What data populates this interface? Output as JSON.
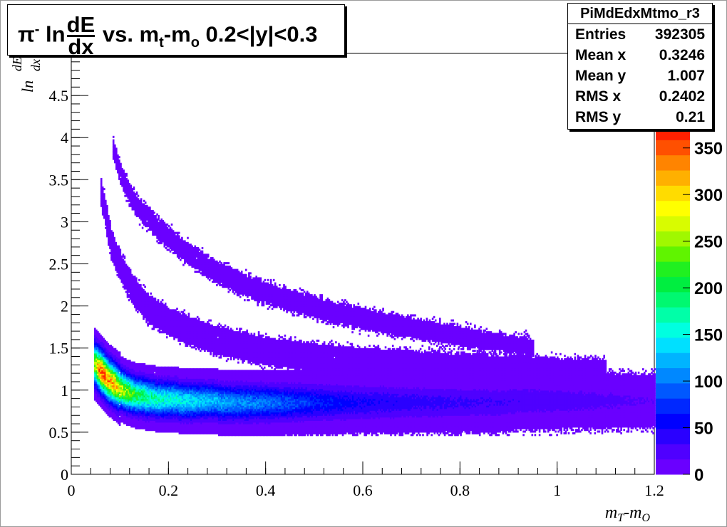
{
  "title": {
    "particle": "π",
    "particle_sup": "-",
    "ln": "ln",
    "frac_num": "dE",
    "frac_den": "dx",
    "vs": "vs. m",
    "t_sub": "t",
    "minus_m": "-m",
    "o_sub": "o",
    "cut": "0.2<|y|<0.3"
  },
  "stats": {
    "name": "PiMdEdxMtmo_r3",
    "rows": [
      {
        "label": "Entries",
        "value": "392305"
      },
      {
        "label": "Mean x",
        "value": "0.3246"
      },
      {
        "label": "Mean y",
        "value": "1.007"
      },
      {
        "label": "RMS x",
        "value": "0.2402"
      },
      {
        "label": "RMS y",
        "value": "0.21"
      }
    ]
  },
  "chart_data": {
    "type": "heatmap",
    "xlabel": "m_T-m_O",
    "ylabel": "ln dE/dx",
    "xlim": [
      0,
      1.2
    ],
    "ylim": [
      0,
      5
    ],
    "x_ticks": [
      "0",
      "0.2",
      "0.4",
      "0.6",
      "0.8",
      "1",
      "1.2"
    ],
    "y_ticks": [
      "0",
      "0.5",
      "1",
      "1.5",
      "2",
      "2.5",
      "3",
      "3.5",
      "4",
      "4.5"
    ],
    "z_ticks": [
      "0",
      "50",
      "100",
      "150",
      "200",
      "250",
      "300",
      "350"
    ],
    "zlim": [
      0,
      375
    ],
    "palette": [
      "#6a00ff",
      "#4f00ff",
      "#2a00ff",
      "#0000ff",
      "#0028ff",
      "#0058ff",
      "#0088ff",
      "#00b4ff",
      "#00e0ff",
      "#00ffe0",
      "#00ffa8",
      "#00f870",
      "#00ee40",
      "#20f020",
      "#60f400",
      "#a0f800",
      "#d8fc00",
      "#ffff00",
      "#ffdc00",
      "#ffb000",
      "#ff8400",
      "#ff5000",
      "#ff2000"
    ],
    "bands": [
      {
        "name": "",
        "points": [
          [
            0.047,
            1.3
          ],
          [
            0.06,
            1.22
          ],
          [
            0.08,
            1.1
          ],
          [
            0.1,
            1.01
          ],
          [
            0.13,
            0.94
          ],
          [
            0.17,
            0.9
          ],
          [
            0.22,
            0.88
          ],
          [
            0.3,
            0.86
          ],
          [
            0.4,
            0.85
          ],
          [
            0.5,
            0.85
          ],
          [
            0.6,
            0.85
          ],
          [
            0.7,
            0.85
          ],
          [
            0.8,
            0.85
          ],
          [
            0.9,
            0.86
          ],
          [
            1.0,
            0.86
          ],
          [
            1.1,
            0.87
          ],
          [
            1.2,
            0.87
          ]
        ],
        "peak": [
          [
            0.047,
            260
          ],
          [
            0.06,
            370
          ],
          [
            0.08,
            330
          ],
          [
            0.1,
            280
          ],
          [
            0.13,
            210
          ],
          [
            0.17,
            170
          ],
          [
            0.22,
            150
          ],
          [
            0.3,
            120
          ],
          [
            0.4,
            100
          ],
          [
            0.5,
            70
          ],
          [
            0.6,
            50
          ],
          [
            0.7,
            40
          ],
          [
            0.8,
            35
          ],
          [
            0.9,
            30
          ],
          [
            1.0,
            25
          ],
          [
            1.1,
            20
          ],
          [
            1.2,
            15
          ]
        ]
      },
      {
        "name": "",
        "points": [
          [
            0.06,
            3.35
          ],
          [
            0.08,
            2.75
          ],
          [
            0.1,
            2.45
          ],
          [
            0.13,
            2.15
          ],
          [
            0.16,
            1.95
          ],
          [
            0.2,
            1.8
          ],
          [
            0.25,
            1.68
          ],
          [
            0.3,
            1.58
          ],
          [
            0.4,
            1.45
          ],
          [
            0.5,
            1.38
          ],
          [
            0.6,
            1.33
          ],
          [
            0.7,
            1.3
          ],
          [
            0.8,
            1.27
          ],
          [
            0.9,
            1.25
          ],
          [
            1.0,
            1.22
          ],
          [
            1.1,
            1.2
          ]
        ],
        "peak": [
          [
            0.06,
            8
          ],
          [
            0.1,
            12
          ],
          [
            0.2,
            12
          ],
          [
            0.3,
            12
          ],
          [
            0.5,
            12
          ],
          [
            0.7,
            10
          ],
          [
            0.9,
            8
          ],
          [
            1.1,
            6
          ]
        ]
      },
      {
        "name": "",
        "points": [
          [
            0.085,
            3.85
          ],
          [
            0.1,
            3.55
          ],
          [
            0.13,
            3.2
          ],
          [
            0.17,
            2.95
          ],
          [
            0.22,
            2.7
          ],
          [
            0.28,
            2.45
          ],
          [
            0.35,
            2.25
          ],
          [
            0.45,
            2.05
          ],
          [
            0.55,
            1.9
          ],
          [
            0.65,
            1.78
          ],
          [
            0.75,
            1.68
          ],
          [
            0.85,
            1.58
          ],
          [
            0.95,
            1.5
          ]
        ],
        "peak": [
          [
            0.085,
            4
          ],
          [
            0.15,
            6
          ],
          [
            0.3,
            7
          ],
          [
            0.5,
            7
          ],
          [
            0.7,
            5
          ],
          [
            0.95,
            3
          ]
        ]
      }
    ]
  }
}
